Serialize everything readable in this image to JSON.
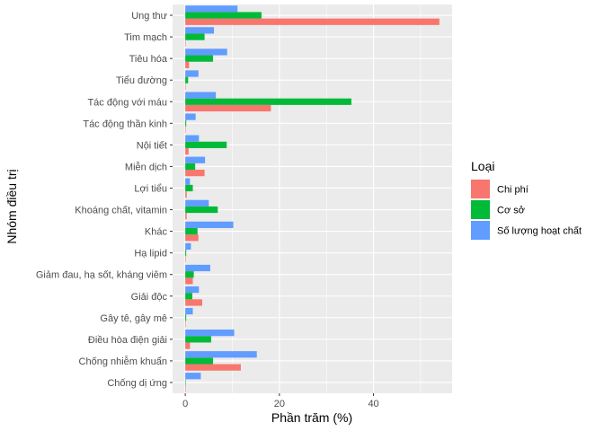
{
  "chart_data": {
    "type": "bar",
    "orientation": "horizontal",
    "xlabel": "Phần trăm (%)",
    "ylabel": "Nhóm điều trị",
    "xlim": [
      -2.7,
      56.7
    ],
    "xticks": [
      0,
      20,
      40
    ],
    "grid": true,
    "legend": {
      "title": "Loại",
      "position": "right"
    },
    "categories": [
      "Ung thư",
      "Tim mạch",
      "Tiêu hóa",
      "Tiểu đường",
      "Tác động với máu",
      "Tác động thần kinh",
      "Nội tiết",
      "Miễn dịch",
      "Lợi tiểu",
      "Khoáng chất, vitamin",
      "Khác",
      "Hạ lipid",
      "Giảm đau, hạ sốt, kháng viêm",
      "Giải độc",
      "Gây tê, gây mê",
      "Điều hòa điện giải",
      "Chống nhiễm khuẩn",
      "Chống dị ứng"
    ],
    "series": [
      {
        "name": "Chi phí",
        "color": "#F8766D",
        "values": [
          54.0,
          0.1,
          0.8,
          0.1,
          18.2,
          0.1,
          0.7,
          4.1,
          0.3,
          0.3,
          2.8,
          0.1,
          1.6,
          3.6,
          0.1,
          1.0,
          11.8,
          0.1
        ]
      },
      {
        "name": "Cơ sở",
        "color": "#00BA38",
        "values": [
          16.2,
          4.1,
          5.9,
          0.6,
          35.3,
          0.2,
          8.8,
          2.1,
          1.6,
          6.9,
          2.6,
          0.2,
          1.8,
          1.5,
          0.2,
          5.5,
          5.9,
          0.1
        ]
      },
      {
        "name": "Số lượng hoạt chất",
        "color": "#619CFF",
        "values": [
          11.1,
          6.1,
          8.9,
          2.8,
          6.5,
          2.2,
          2.9,
          4.2,
          1.0,
          5.0,
          10.2,
          1.2,
          5.3,
          2.9,
          1.6,
          10.4,
          15.2,
          3.3
        ]
      }
    ]
  }
}
